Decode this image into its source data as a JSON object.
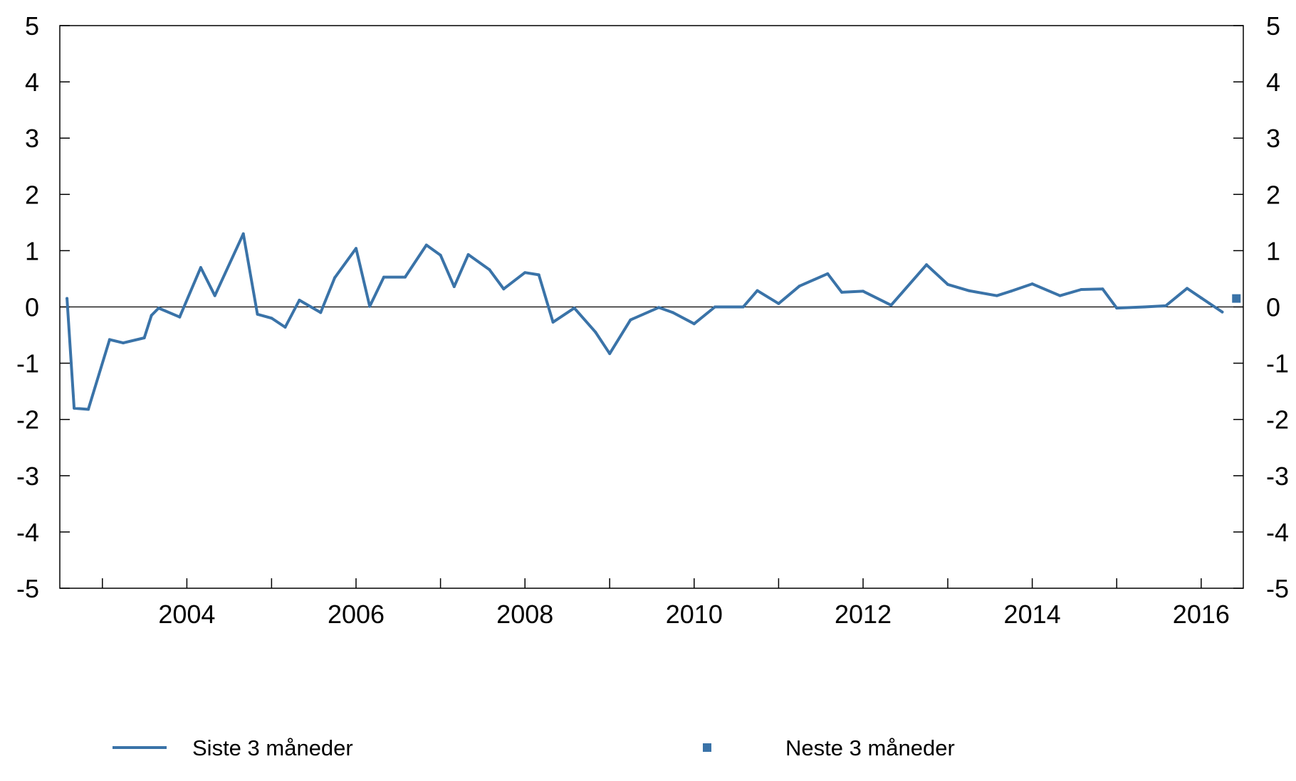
{
  "chart_data": {
    "type": "line",
    "title": "",
    "xlabel": "",
    "ylabel": "",
    "ylim": [
      -5,
      5
    ],
    "yticks": [
      -5,
      -4,
      -3,
      -2,
      -1,
      0,
      1,
      2,
      3,
      4,
      5
    ],
    "ytick_labels": [
      "-5",
      "-4",
      "-3",
      "-2",
      "-1",
      "0",
      "1",
      "2",
      "3",
      "4",
      "5"
    ],
    "xlim": [
      "2002-07-01",
      "2016-07-01"
    ],
    "xticks": [
      "2003-01-01",
      "2004-01-01",
      "2005-01-01",
      "2006-01-01",
      "2007-01-01",
      "2008-01-01",
      "2009-01-01",
      "2010-01-01",
      "2011-01-01",
      "2012-01-01",
      "2013-01-01",
      "2014-01-01",
      "2015-01-01",
      "2016-01-01"
    ],
    "xtick_labels": [
      {
        "date": "2004-01-01",
        "label": "2004"
      },
      {
        "date": "2006-01-01",
        "label": "2006"
      },
      {
        "date": "2008-01-01",
        "label": "2008"
      },
      {
        "date": "2010-01-01",
        "label": "2010"
      },
      {
        "date": "2012-01-01",
        "label": "2012"
      },
      {
        "date": "2014-01-01",
        "label": "2014"
      },
      {
        "date": "2016-01-01",
        "label": "2016"
      }
    ],
    "grid": false,
    "zero_line": true,
    "right_axis_mirror": true,
    "legend_position": "bottom",
    "color": "#3a73a8",
    "series": [
      {
        "name": "Siste 3 måneder",
        "kind": "line",
        "points": [
          {
            "x": "2002-08-01",
            "y": 0.15
          },
          {
            "x": "2002-09-01",
            "y": -1.8
          },
          {
            "x": "2002-11-01",
            "y": -1.82
          },
          {
            "x": "2003-02-01",
            "y": -0.58
          },
          {
            "x": "2003-04-01",
            "y": -0.64
          },
          {
            "x": "2003-07-01",
            "y": -0.55
          },
          {
            "x": "2003-08-01",
            "y": -0.15
          },
          {
            "x": "2003-09-01",
            "y": -0.02
          },
          {
            "x": "2003-12-01",
            "y": -0.18
          },
          {
            "x": "2004-03-01",
            "y": 0.7
          },
          {
            "x": "2004-05-01",
            "y": 0.2
          },
          {
            "x": "2004-09-01",
            "y": 1.3
          },
          {
            "x": "2004-11-01",
            "y": -0.13
          },
          {
            "x": "2005-01-01",
            "y": -0.2
          },
          {
            "x": "2005-03-01",
            "y": -0.36
          },
          {
            "x": "2005-05-01",
            "y": 0.12
          },
          {
            "x": "2005-08-01",
            "y": -0.1
          },
          {
            "x": "2005-10-01",
            "y": 0.52
          },
          {
            "x": "2006-01-01",
            "y": 1.04
          },
          {
            "x": "2006-03-01",
            "y": 0.01
          },
          {
            "x": "2006-05-01",
            "y": 0.53
          },
          {
            "x": "2006-08-01",
            "y": 0.53
          },
          {
            "x": "2006-11-01",
            "y": 1.1
          },
          {
            "x": "2007-01-01",
            "y": 0.92
          },
          {
            "x": "2007-03-01",
            "y": 0.36
          },
          {
            "x": "2007-05-01",
            "y": 0.93
          },
          {
            "x": "2007-08-01",
            "y": 0.66
          },
          {
            "x": "2007-10-01",
            "y": 0.32
          },
          {
            "x": "2008-01-01",
            "y": 0.61
          },
          {
            "x": "2008-03-01",
            "y": 0.57
          },
          {
            "x": "2008-05-01",
            "y": -0.27
          },
          {
            "x": "2008-08-01",
            "y": -0.02
          },
          {
            "x": "2008-11-01",
            "y": -0.45
          },
          {
            "x": "2009-01-01",
            "y": -0.83
          },
          {
            "x": "2009-04-01",
            "y": -0.23
          },
          {
            "x": "2009-08-01",
            "y": -0.01
          },
          {
            "x": "2009-10-01",
            "y": -0.1
          },
          {
            "x": "2010-01-01",
            "y": -0.3
          },
          {
            "x": "2010-04-01",
            "y": 0.0
          },
          {
            "x": "2010-08-01",
            "y": 0.0
          },
          {
            "x": "2010-10-01",
            "y": 0.29
          },
          {
            "x": "2011-01-01",
            "y": 0.06
          },
          {
            "x": "2011-04-01",
            "y": 0.37
          },
          {
            "x": "2011-08-01",
            "y": 0.59
          },
          {
            "x": "2011-10-01",
            "y": 0.26
          },
          {
            "x": "2012-01-01",
            "y": 0.28
          },
          {
            "x": "2012-05-01",
            "y": 0.03
          },
          {
            "x": "2012-10-01",
            "y": 0.75
          },
          {
            "x": "2013-01-01",
            "y": 0.4
          },
          {
            "x": "2013-04-01",
            "y": 0.29
          },
          {
            "x": "2013-08-01",
            "y": 0.2
          },
          {
            "x": "2013-10-01",
            "y": 0.28
          },
          {
            "x": "2014-01-01",
            "y": 0.41
          },
          {
            "x": "2014-05-01",
            "y": 0.2
          },
          {
            "x": "2014-08-01",
            "y": 0.31
          },
          {
            "x": "2014-11-01",
            "y": 0.32
          },
          {
            "x": "2015-01-01",
            "y": -0.02
          },
          {
            "x": "2015-05-01",
            "y": 0.0
          },
          {
            "x": "2015-08-01",
            "y": 0.02
          },
          {
            "x": "2015-11-01",
            "y": 0.33
          },
          {
            "x": "2016-01-01",
            "y": 0.16
          },
          {
            "x": "2016-04-01",
            "y": -0.09
          }
        ]
      },
      {
        "name": "Neste 3 måneder",
        "kind": "marker",
        "points": [
          {
            "x": "2016-06-01",
            "y": 0.15
          }
        ]
      }
    ]
  }
}
